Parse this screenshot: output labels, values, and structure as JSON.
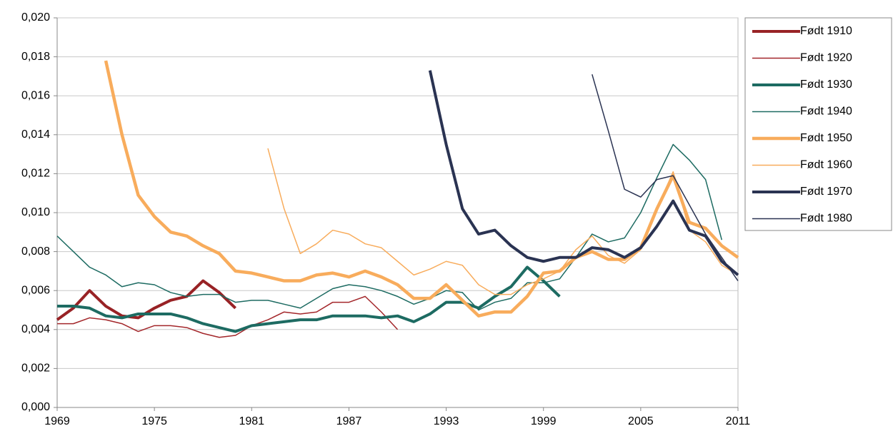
{
  "chart_data": {
    "type": "line",
    "x": [
      1969,
      1970,
      1971,
      1972,
      1973,
      1974,
      1975,
      1976,
      1977,
      1978,
      1979,
      1980,
      1981,
      1982,
      1983,
      1984,
      1985,
      1986,
      1987,
      1988,
      1989,
      1990,
      1991,
      1992,
      1993,
      1994,
      1995,
      1996,
      1997,
      1998,
      1999,
      2000,
      2001,
      2002,
      2003,
      2004,
      2005,
      2006,
      2007,
      2008,
      2009,
      2010,
      2011
    ],
    "xlim": [
      1969,
      2011
    ],
    "xticks": [
      1969,
      1975,
      1981,
      1987,
      1993,
      1999,
      2005,
      2011
    ],
    "ylim": [
      0,
      0.02
    ],
    "yticks": [
      {
        "value": 0,
        "label": "0,000"
      },
      {
        "value": 0.002,
        "label": "0,002"
      },
      {
        "value": 0.004,
        "label": "0,004"
      },
      {
        "value": 0.006,
        "label": "0,006"
      },
      {
        "value": 0.008,
        "label": "0,008"
      },
      {
        "value": 0.01,
        "label": "0,010"
      },
      {
        "value": 0.012,
        "label": "0,012"
      },
      {
        "value": 0.014,
        "label": "0,014"
      },
      {
        "value": 0.016,
        "label": "0,016"
      },
      {
        "value": 0.018,
        "label": "0,018"
      },
      {
        "value": 0.02,
        "label": "0,020"
      }
    ],
    "grid": true,
    "legend": "right",
    "series": [
      {
        "name": "Født 1910",
        "color": "#982225",
        "width": 4,
        "values": [
          0.0045,
          0.0051,
          0.006,
          0.0052,
          0.0047,
          0.0046,
          0.0051,
          0.0055,
          0.0057,
          0.0065,
          0.0059,
          0.0051,
          null,
          null,
          null,
          null,
          null,
          null,
          null,
          null,
          null,
          null,
          null,
          null,
          null,
          null,
          null,
          null,
          null,
          null,
          null,
          null,
          null,
          null,
          null,
          null,
          null,
          null,
          null,
          null,
          null,
          null,
          null
        ]
      },
      {
        "name": "Født 1920",
        "color": "#a3262a",
        "width": 1.5,
        "values": [
          0.0043,
          0.0043,
          0.0046,
          0.0045,
          0.0043,
          0.0039,
          0.0042,
          0.0042,
          0.0041,
          0.0038,
          0.0036,
          0.0037,
          0.0042,
          0.0045,
          0.0049,
          0.0048,
          0.0049,
          0.0054,
          0.0054,
          0.0057,
          0.0049,
          0.004,
          null,
          null,
          null,
          null,
          null,
          null,
          null,
          null,
          null,
          null,
          null,
          null,
          null,
          null,
          null,
          null,
          null,
          null,
          null,
          null,
          null
        ]
      },
      {
        "name": "Født 1930",
        "color": "#1d6b62",
        "width": 4,
        "values": [
          0.0052,
          0.0052,
          0.0051,
          0.0047,
          0.0046,
          0.0048,
          0.0048,
          0.0048,
          0.0046,
          0.0043,
          0.0041,
          0.0039,
          0.0042,
          0.0043,
          0.0044,
          0.0045,
          0.0045,
          0.0047,
          0.0047,
          0.0047,
          0.0046,
          0.0047,
          0.0044,
          0.0048,
          0.0054,
          0.0054,
          0.0051,
          0.0057,
          0.0062,
          0.0072,
          0.0065,
          0.0057,
          null,
          null,
          null,
          null,
          null,
          null,
          null,
          null,
          null,
          null,
          null
        ]
      },
      {
        "name": "Født 1940",
        "color": "#1d6b62",
        "width": 1.5,
        "values": [
          0.0088,
          0.008,
          0.0072,
          0.0068,
          0.0062,
          0.0064,
          0.0063,
          0.0059,
          0.0057,
          0.0058,
          0.0058,
          0.0054,
          0.0055,
          0.0055,
          0.0053,
          0.0051,
          0.0056,
          0.0061,
          0.0063,
          0.0062,
          0.006,
          0.0057,
          0.0053,
          0.0056,
          0.006,
          0.0059,
          0.005,
          0.0054,
          0.0056,
          0.0064,
          0.0064,
          0.0066,
          0.0077,
          0.0089,
          0.0085,
          0.0087,
          0.01,
          0.0118,
          0.0135,
          0.0127,
          0.0117,
          0.0086,
          null
        ]
      },
      {
        "name": "Født 1950",
        "color": "#f8ac5c",
        "width": 4.5,
        "values": [
          null,
          null,
          null,
          0.0178,
          0.014,
          0.0109,
          0.0098,
          0.009,
          0.0088,
          0.0083,
          0.0079,
          0.007,
          0.0069,
          0.0067,
          0.0065,
          0.0065,
          0.0068,
          0.0069,
          0.0067,
          0.007,
          0.0067,
          0.0063,
          0.0056,
          0.0056,
          0.0063,
          0.0055,
          0.0047,
          0.0049,
          0.0049,
          0.0057,
          0.0069,
          0.007,
          0.0077,
          0.008,
          0.0076,
          0.0076,
          0.0082,
          0.0102,
          0.0119,
          0.0095,
          0.0092,
          0.0083,
          0.0077
        ]
      },
      {
        "name": "Født 1960",
        "color": "#f8ac5c",
        "width": 1.5,
        "values": [
          null,
          null,
          null,
          null,
          null,
          null,
          null,
          null,
          null,
          null,
          null,
          null,
          null,
          0.0133,
          0.0102,
          0.0079,
          0.0084,
          0.0091,
          0.0089,
          0.0084,
          0.0082,
          0.0075,
          0.0068,
          0.0071,
          0.0075,
          0.0073,
          0.0063,
          0.0058,
          0.0058,
          0.0063,
          0.0066,
          0.007,
          0.0081,
          0.0088,
          0.0078,
          0.0074,
          0.0081,
          0.0102,
          0.0121,
          0.0091,
          0.0085,
          0.0073,
          0.0068
        ]
      },
      {
        "name": "Født 1970",
        "color": "#2a3352",
        "width": 4,
        "values": [
          null,
          null,
          null,
          null,
          null,
          null,
          null,
          null,
          null,
          null,
          null,
          null,
          null,
          null,
          null,
          null,
          null,
          null,
          null,
          null,
          null,
          null,
          null,
          0.0173,
          0.0135,
          0.0102,
          0.0089,
          0.0091,
          0.0083,
          0.0077,
          0.0075,
          0.0077,
          0.0077,
          0.0082,
          0.0081,
          0.0077,
          0.0082,
          0.0093,
          0.0106,
          0.0091,
          0.0088,
          0.0075,
          0.0068
        ]
      },
      {
        "name": "Født 1980",
        "color": "#2a3352",
        "width": 1.5,
        "values": [
          null,
          null,
          null,
          null,
          null,
          null,
          null,
          null,
          null,
          null,
          null,
          null,
          null,
          null,
          null,
          null,
          null,
          null,
          null,
          null,
          null,
          null,
          null,
          null,
          null,
          null,
          null,
          null,
          null,
          null,
          null,
          null,
          null,
          0.0171,
          0.0142,
          0.0112,
          0.0108,
          0.0117,
          0.0119,
          0.0104,
          0.0089,
          0.0077,
          0.0065
        ]
      }
    ]
  }
}
